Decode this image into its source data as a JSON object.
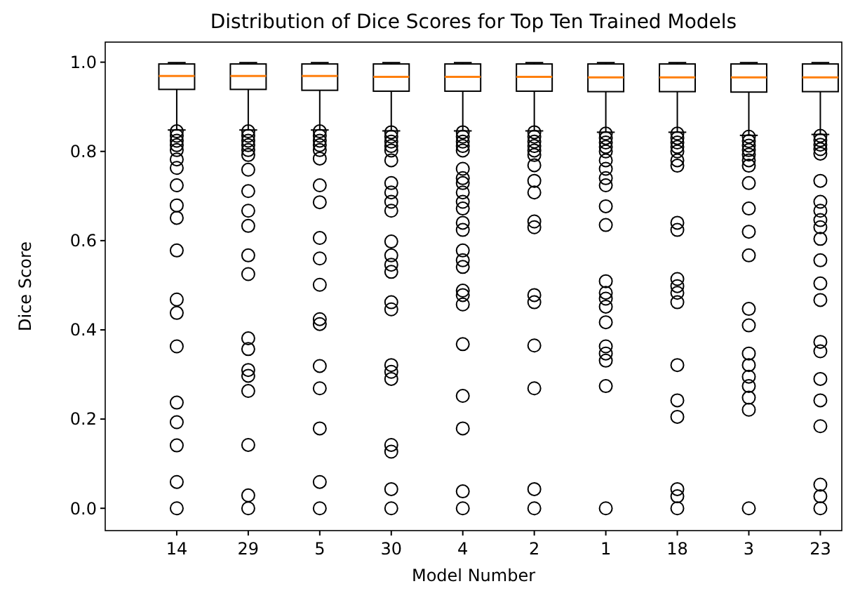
{
  "chart_data": {
    "type": "box",
    "title": "Distribution of Dice Scores for Top Ten Trained Models",
    "xlabel": "Model Number",
    "ylabel": "Dice Score",
    "categories": [
      "14",
      "29",
      "5",
      "30",
      "4",
      "2",
      "1",
      "18",
      "3",
      "23"
    ],
    "ylim": [
      -0.05,
      1.045
    ],
    "yticks": [
      {
        "value": 0,
        "label": "0.0"
      },
      {
        "value": 0.2,
        "label": "0.2"
      },
      {
        "value": 0.4,
        "label": "0.4"
      },
      {
        "value": 0.6,
        "label": "0.6"
      },
      {
        "value": 0.8,
        "label": "0.8"
      },
      {
        "value": 1,
        "label": "1.0"
      }
    ],
    "grid": false,
    "marker": "circle",
    "boxes": [
      {
        "low": 0.848,
        "q1": 0.939,
        "median": 0.969,
        "q3": 0.996,
        "high": 0.999,
        "outliers": [
          0.845,
          0.835,
          0.824,
          0.814,
          0.803,
          0.782,
          0.763,
          0.724,
          0.679,
          0.651,
          0.578,
          0.468,
          0.438,
          0.363,
          0.237,
          0.193,
          0.141,
          0.059,
          0.0
        ]
      },
      {
        "low": 0.848,
        "q1": 0.939,
        "median": 0.969,
        "q3": 0.996,
        "high": 0.999,
        "outliers": [
          0.845,
          0.835,
          0.824,
          0.814,
          0.803,
          0.792,
          0.759,
          0.711,
          0.667,
          0.633,
          0.567,
          0.525,
          0.381,
          0.357,
          0.31,
          0.297,
          0.263,
          0.142,
          0.029,
          0.0
        ]
      },
      {
        "low": 0.848,
        "q1": 0.937,
        "median": 0.969,
        "q3": 0.996,
        "high": 0.999,
        "outliers": [
          0.845,
          0.835,
          0.824,
          0.814,
          0.803,
          0.784,
          0.724,
          0.686,
          0.606,
          0.56,
          0.501,
          0.424,
          0.413,
          0.319,
          0.269,
          0.179,
          0.059,
          0.0
        ]
      },
      {
        "low": 0.846,
        "q1": 0.935,
        "median": 0.967,
        "q3": 0.996,
        "high": 0.999,
        "outliers": [
          0.843,
          0.833,
          0.822,
          0.812,
          0.802,
          0.78,
          0.729,
          0.708,
          0.687,
          0.667,
          0.598,
          0.567,
          0.546,
          0.53,
          0.462,
          0.446,
          0.321,
          0.306,
          0.29,
          0.142,
          0.127,
          0.043,
          0.0
        ]
      },
      {
        "low": 0.846,
        "q1": 0.935,
        "median": 0.967,
        "q3": 0.996,
        "high": 0.999,
        "outliers": [
          0.843,
          0.833,
          0.822,
          0.812,
          0.802,
          0.761,
          0.74,
          0.729,
          0.708,
          0.687,
          0.672,
          0.64,
          0.624,
          0.578,
          0.556,
          0.541,
          0.488,
          0.478,
          0.457,
          0.368,
          0.252,
          0.179,
          0.038,
          0.0
        ]
      },
      {
        "low": 0.846,
        "q1": 0.935,
        "median": 0.967,
        "q3": 0.996,
        "high": 0.999,
        "outliers": [
          0.843,
          0.833,
          0.822,
          0.812,
          0.802,
          0.792,
          0.769,
          0.734,
          0.708,
          0.643,
          0.63,
          0.478,
          0.462,
          0.365,
          0.269,
          0.043,
          0.0
        ]
      },
      {
        "low": 0.843,
        "q1": 0.934,
        "median": 0.966,
        "q3": 0.996,
        "high": 0.999,
        "outliers": [
          0.84,
          0.83,
          0.82,
          0.81,
          0.8,
          0.78,
          0.761,
          0.74,
          0.724,
          0.677,
          0.635,
          0.509,
          0.483,
          0.47,
          0.452,
          0.417,
          0.363,
          0.347,
          0.331,
          0.274,
          0.0
        ]
      },
      {
        "low": 0.843,
        "q1": 0.934,
        "median": 0.966,
        "q3": 0.996,
        "high": 0.999,
        "outliers": [
          0.84,
          0.83,
          0.82,
          0.81,
          0.8,
          0.78,
          0.768,
          0.64,
          0.624,
          0.514,
          0.498,
          0.483,
          0.462,
          0.321,
          0.242,
          0.205,
          0.043,
          0.027,
          0.0
        ]
      },
      {
        "low": 0.836,
        "q1": 0.933,
        "median": 0.966,
        "q3": 0.996,
        "high": 0.999,
        "outliers": [
          0.833,
          0.823,
          0.813,
          0.803,
          0.793,
          0.78,
          0.768,
          0.729,
          0.672,
          0.62,
          0.567,
          0.447,
          0.41,
          0.347,
          0.321,
          0.295,
          0.274,
          0.248,
          0.221,
          0.0
        ]
      },
      {
        "low": 0.838,
        "q1": 0.934,
        "median": 0.966,
        "q3": 0.996,
        "high": 0.999,
        "outliers": [
          0.835,
          0.825,
          0.815,
          0.805,
          0.795,
          0.734,
          0.687,
          0.667,
          0.646,
          0.63,
          0.604,
          0.556,
          0.504,
          0.467,
          0.373,
          0.352,
          0.29,
          0.242,
          0.184,
          0.053,
          0.027,
          0.0
        ]
      }
    ]
  }
}
